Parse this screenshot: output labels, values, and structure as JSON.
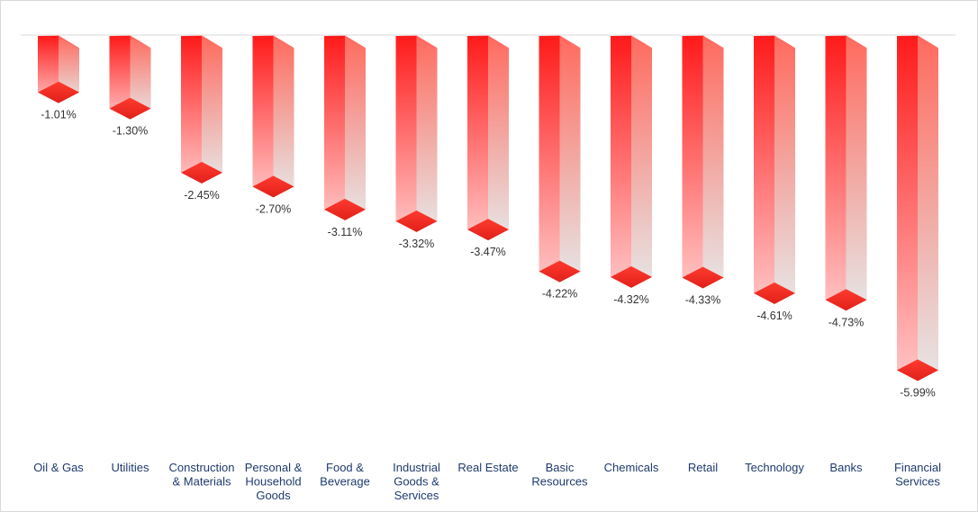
{
  "chart_data": {
    "type": "bar",
    "title": "",
    "xlabel": "",
    "ylabel": "",
    "categories": [
      [
        "Oil & Gas"
      ],
      [
        "Utilities"
      ],
      [
        "Construction",
        "& Materials"
      ],
      [
        "Personal &",
        "Household",
        "Goods"
      ],
      [
        "Food &",
        "Beverage"
      ],
      [
        "Industrial",
        "Goods &",
        "Services"
      ],
      [
        "Real Estate"
      ],
      [
        "Basic",
        "Resources"
      ],
      [
        "Chemicals"
      ],
      [
        "Retail"
      ],
      [
        "Technology"
      ],
      [
        "Banks"
      ],
      [
        "Financial",
        "Services"
      ]
    ],
    "values": [
      -1.01,
      -1.3,
      -2.45,
      -2.7,
      -3.11,
      -3.32,
      -3.47,
      -4.22,
      -4.32,
      -4.33,
      -4.61,
      -4.73,
      -5.99
    ],
    "data_labels": [
      "-1.01%",
      "-1.30%",
      "-2.45%",
      "-2.70%",
      "-3.11%",
      "-3.32%",
      "-3.47%",
      "-4.22%",
      "-4.32%",
      "-4.33%",
      "-4.61%",
      "-4.73%",
      "-5.99%"
    ],
    "ylim": [
      -6,
      0
    ],
    "grid": false,
    "legend": "none",
    "colors": {
      "bar_top": "#ff1a1a",
      "bar_fade": "#e6e6e6",
      "diamond": "#ff3b2f",
      "diamond_dark": "#e0201a",
      "label_text": "#333333",
      "tick_text": "#1f3a6e",
      "baseline": "#d9d9d9"
    }
  }
}
